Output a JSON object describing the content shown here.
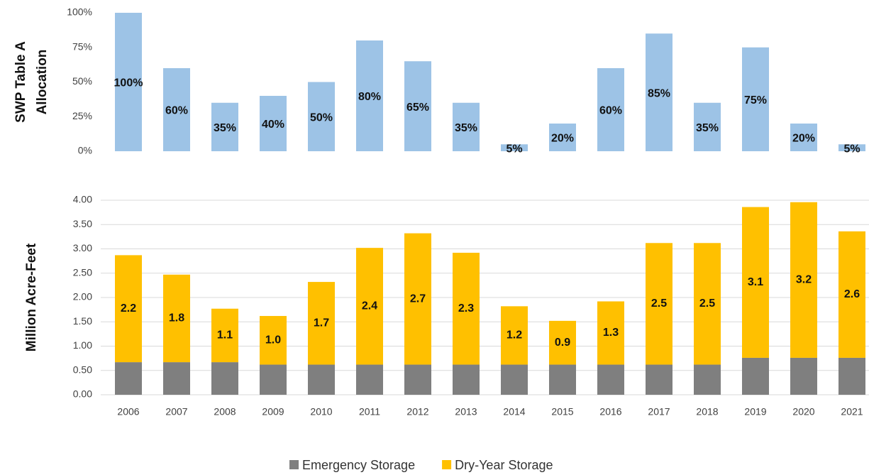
{
  "chart_data": [
    {
      "type": "bar",
      "ylabel": [
        "SWP Table A",
        "Allocation"
      ],
      "values": [
        100,
        60,
        35,
        40,
        50,
        80,
        65,
        35,
        5,
        20,
        60,
        85,
        35,
        75,
        20,
        5
      ],
      "value_labels": [
        "100%",
        "60%",
        "35%",
        "40%",
        "50%",
        "80%",
        "65%",
        "35%",
        "5%",
        "20%",
        "60%",
        "85%",
        "35%",
        "75%",
        "20%",
        "5%"
      ],
      "color": "#9dc3e6",
      "ylim": [
        0,
        100
      ],
      "yticks": [
        {
          "value": 0,
          "label": "0%"
        },
        {
          "value": 25,
          "label": "25%"
        },
        {
          "value": 50,
          "label": "50%"
        },
        {
          "value": 75,
          "label": "75%"
        },
        {
          "value": 100,
          "label": "100%"
        }
      ],
      "grid": false
    },
    {
      "type": "stacked_bar",
      "ylabel": "Million Acre-Feet",
      "categories": [
        "2006",
        "2007",
        "2008",
        "2009",
        "2010",
        "2011",
        "2012",
        "2013",
        "2014",
        "2015",
        "2016",
        "2017",
        "2018",
        "2019",
        "2020",
        "2021"
      ],
      "series": [
        {
          "name": "Emergency Storage",
          "color": "#7f7f7f",
          "values": [
            0.67,
            0.67,
            0.67,
            0.62,
            0.62,
            0.62,
            0.62,
            0.62,
            0.62,
            0.62,
            0.62,
            0.62,
            0.62,
            0.76,
            0.76,
            0.76
          ]
        },
        {
          "name": "Dry-Year Storage",
          "color": "#ffc000",
          "values": [
            2.2,
            1.8,
            1.1,
            1.0,
            1.7,
            2.4,
            2.7,
            2.3,
            1.2,
            0.9,
            1.3,
            2.5,
            2.5,
            3.1,
            3.2,
            2.6
          ],
          "value_labels": [
            "2.2",
            "1.8",
            "1.1",
            "1.0",
            "1.7",
            "2.4",
            "2.7",
            "2.3",
            "1.2",
            "0.9",
            "1.3",
            "2.5",
            "2.5",
            "3.1",
            "3.2",
            "2.6"
          ]
        }
      ],
      "ylim": [
        0,
        4
      ],
      "yticks": [
        {
          "value": 0,
          "label": "0.00"
        },
        {
          "value": 0.5,
          "label": "0.50"
        },
        {
          "value": 1,
          "label": "1.00"
        },
        {
          "value": 1.5,
          "label": "1.50"
        },
        {
          "value": 2,
          "label": "2.00"
        },
        {
          "value": 2.5,
          "label": "2.50"
        },
        {
          "value": 3,
          "label": "3.00"
        },
        {
          "value": 3.5,
          "label": "3.50"
        },
        {
          "value": 4,
          "label": "4.00"
        }
      ],
      "grid": true,
      "legend": "bottom"
    }
  ]
}
